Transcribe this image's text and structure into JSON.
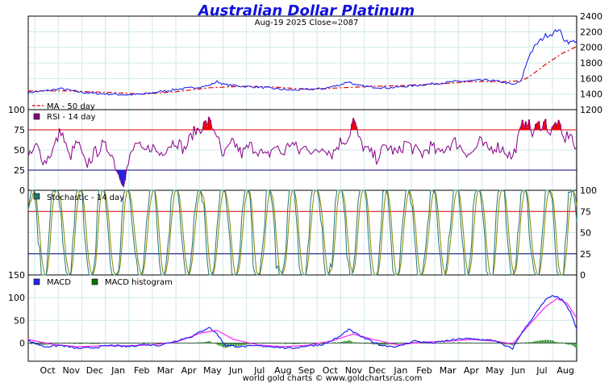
{
  "header": {
    "title": "Australian Dollar Platinum",
    "subtitle": "Aug-19  2025   Close=2087",
    "footer": "world gold charts © www.goldchartsrus.com"
  },
  "colors": {
    "title": "#1111dd",
    "price": "#1111ee",
    "ma": "#dd0000",
    "rsi": "#880088",
    "overbought_fill": "#ee0000",
    "oversold_fill": "#2222dd",
    "stoch_k": "#227777",
    "stoch_d": "#888800",
    "macd": "#2222ee",
    "signal": "#ff22ff",
    "hist": "#007700",
    "grid": "#cfe8e8",
    "upper_band": "#dd0000",
    "lower_band": "#000077"
  },
  "chart_data": [
    {
      "type": "line",
      "name": "price",
      "legend": [
        "MA - 50 day"
      ],
      "ylim": [
        1200,
        2400
      ],
      "yticks": [
        1200,
        1400,
        1600,
        1800,
        2000,
        2200,
        2400
      ],
      "xlabels": [
        "Oct",
        "Nov",
        "Dec",
        "Jan",
        "Feb",
        "Mar",
        "Apr",
        "May",
        "Jun",
        "Jul",
        "Aug",
        "Sep",
        "Oct",
        "Nov",
        "Dec",
        "Jan",
        "Feb",
        "Mar",
        "Apr",
        "May",
        "Jun",
        "Jul",
        "Aug"
      ],
      "price_anchors": [
        [
          0,
          1420
        ],
        [
          10,
          1440
        ],
        [
          20,
          1470
        ],
        [
          30,
          1430
        ],
        [
          40,
          1410
        ],
        [
          50,
          1400
        ],
        [
          60,
          1390
        ],
        [
          70,
          1400
        ],
        [
          80,
          1430
        ],
        [
          90,
          1460
        ],
        [
          100,
          1480
        ],
        [
          110,
          1510
        ],
        [
          115,
          1560
        ],
        [
          120,
          1520
        ],
        [
          130,
          1500
        ],
        [
          140,
          1490
        ],
        [
          150,
          1470
        ],
        [
          160,
          1450
        ],
        [
          170,
          1460
        ],
        [
          180,
          1470
        ],
        [
          190,
          1520
        ],
        [
          195,
          1560
        ],
        [
          200,
          1510
        ],
        [
          210,
          1490
        ],
        [
          220,
          1480
        ],
        [
          230,
          1500
        ],
        [
          240,
          1520
        ],
        [
          250,
          1540
        ],
        [
          260,
          1560
        ],
        [
          270,
          1570
        ],
        [
          280,
          1580
        ],
        [
          290,
          1550
        ],
        [
          295,
          1520
        ],
        [
          300,
          1560
        ],
        [
          302,
          1700
        ],
        [
          305,
          1900
        ],
        [
          310,
          2050
        ],
        [
          315,
          2150
        ],
        [
          320,
          2180
        ],
        [
          323,
          2240
        ],
        [
          326,
          2110
        ],
        [
          330,
          2060
        ],
        [
          334,
          2090
        ]
      ],
      "ma_anchors": [
        [
          25,
          1440
        ],
        [
          50,
          1420
        ],
        [
          70,
          1400
        ],
        [
          90,
          1430
        ],
        [
          110,
          1480
        ],
        [
          130,
          1500
        ],
        [
          150,
          1490
        ],
        [
          170,
          1460
        ],
        [
          190,
          1480
        ],
        [
          210,
          1500
        ],
        [
          230,
          1510
        ],
        [
          250,
          1530
        ],
        [
          270,
          1560
        ],
        [
          290,
          1560
        ],
        [
          300,
          1570
        ],
        [
          305,
          1620
        ],
        [
          315,
          1780
        ],
        [
          325,
          1920
        ],
        [
          334,
          2010
        ]
      ]
    },
    {
      "type": "line",
      "name": "rsi",
      "legend": [
        "RSI - 14 day"
      ],
      "ylim": [
        0,
        100
      ],
      "yticks": [
        0,
        25,
        50,
        75,
        100
      ],
      "reference_lines": [
        75,
        25
      ],
      "anchors": [
        [
          0,
          38
        ],
        [
          5,
          55
        ],
        [
          10,
          35
        ],
        [
          15,
          50
        ],
        [
          20,
          75
        ],
        [
          25,
          40
        ],
        [
          30,
          60
        ],
        [
          35,
          30
        ],
        [
          40,
          45
        ],
        [
          45,
          55
        ],
        [
          50,
          50
        ],
        [
          55,
          20
        ],
        [
          58,
          12
        ],
        [
          62,
          40
        ],
        [
          66,
          60
        ],
        [
          70,
          45
        ],
        [
          75,
          55
        ],
        [
          80,
          45
        ],
        [
          85,
          55
        ],
        [
          90,
          62
        ],
        [
          95,
          50
        ],
        [
          100,
          70
        ],
        [
          105,
          78
        ],
        [
          110,
          85
        ],
        [
          115,
          70
        ],
        [
          118,
          40
        ],
        [
          125,
          60
        ],
        [
          130,
          45
        ],
        [
          135,
          55
        ],
        [
          140,
          50
        ],
        [
          145,
          40
        ],
        [
          150,
          55
        ],
        [
          155,
          45
        ],
        [
          160,
          60
        ],
        [
          165,
          48
        ],
        [
          170,
          55
        ],
        [
          175,
          45
        ],
        [
          180,
          55
        ],
        [
          185,
          45
        ],
        [
          190,
          60
        ],
        [
          195,
          65
        ],
        [
          198,
          88
        ],
        [
          202,
          60
        ],
        [
          206,
          50
        ],
        [
          212,
          40
        ],
        [
          218,
          55
        ],
        [
          225,
          45
        ],
        [
          230,
          60
        ],
        [
          235,
          50
        ],
        [
          240,
          45
        ],
        [
          245,
          55
        ],
        [
          250,
          45
        ],
        [
          255,
          55
        ],
        [
          260,
          60
        ],
        [
          265,
          50
        ],
        [
          270,
          45
        ],
        [
          275,
          60
        ],
        [
          280,
          50
        ],
        [
          285,
          55
        ],
        [
          290,
          50
        ],
        [
          295,
          40
        ],
        [
          300,
          75
        ],
        [
          303,
          90
        ],
        [
          307,
          70
        ],
        [
          310,
          80
        ],
        [
          315,
          84
        ],
        [
          318,
          70
        ],
        [
          322,
          86
        ],
        [
          326,
          62
        ],
        [
          330,
          72
        ],
        [
          334,
          45
        ]
      ]
    },
    {
      "type": "line",
      "name": "stochastic",
      "legend": [
        "Stochastic - 14 day"
      ],
      "ylim": [
        0,
        100
      ],
      "yticks": [
        0,
        25,
        50,
        75,
        100
      ],
      "reference_lines": [
        75,
        25
      ]
    },
    {
      "type": "line",
      "name": "macd",
      "legend": [
        "MACD",
        "MACD histogram"
      ],
      "ylim": [
        -40,
        150
      ],
      "yticks": [
        0,
        50,
        100,
        150
      ],
      "macd_anchors": [
        [
          0,
          5
        ],
        [
          10,
          -8
        ],
        [
          20,
          -5
        ],
        [
          30,
          -12
        ],
        [
          40,
          -10
        ],
        [
          50,
          -5
        ],
        [
          60,
          -8
        ],
        [
          70,
          -3
        ],
        [
          80,
          -5
        ],
        [
          90,
          5
        ],
        [
          100,
          15
        ],
        [
          110,
          35
        ],
        [
          115,
          20
        ],
        [
          120,
          -5
        ],
        [
          130,
          -8
        ],
        [
          140,
          -6
        ],
        [
          150,
          -8
        ],
        [
          160,
          -12
        ],
        [
          170,
          -6
        ],
        [
          180,
          -3
        ],
        [
          190,
          15
        ],
        [
          195,
          30
        ],
        [
          205,
          10
        ],
        [
          215,
          -5
        ],
        [
          225,
          -8
        ],
        [
          235,
          5
        ],
        [
          245,
          0
        ],
        [
          255,
          5
        ],
        [
          265,
          10
        ],
        [
          275,
          8
        ],
        [
          285,
          5
        ],
        [
          290,
          -6
        ],
        [
          295,
          -12
        ],
        [
          300,
          20
        ],
        [
          308,
          60
        ],
        [
          315,
          95
        ],
        [
          320,
          105
        ],
        [
          325,
          95
        ],
        [
          330,
          70
        ],
        [
          334,
          30
        ]
      ],
      "signal_anchors": [
        [
          0,
          8
        ],
        [
          15,
          -3
        ],
        [
          30,
          -8
        ],
        [
          45,
          -6
        ],
        [
          60,
          -6
        ],
        [
          75,
          -4
        ],
        [
          90,
          2
        ],
        [
          105,
          22
        ],
        [
          115,
          28
        ],
        [
          125,
          8
        ],
        [
          140,
          -4
        ],
        [
          155,
          -8
        ],
        [
          170,
          -5
        ],
        [
          185,
          5
        ],
        [
          198,
          20
        ],
        [
          210,
          8
        ],
        [
          225,
          -4
        ],
        [
          240,
          2
        ],
        [
          255,
          4
        ],
        [
          270,
          8
        ],
        [
          285,
          4
        ],
        [
          295,
          -2
        ],
        [
          305,
          40
        ],
        [
          315,
          80
        ],
        [
          322,
          98
        ],
        [
          328,
          88
        ],
        [
          334,
          55
        ]
      ]
    }
  ]
}
